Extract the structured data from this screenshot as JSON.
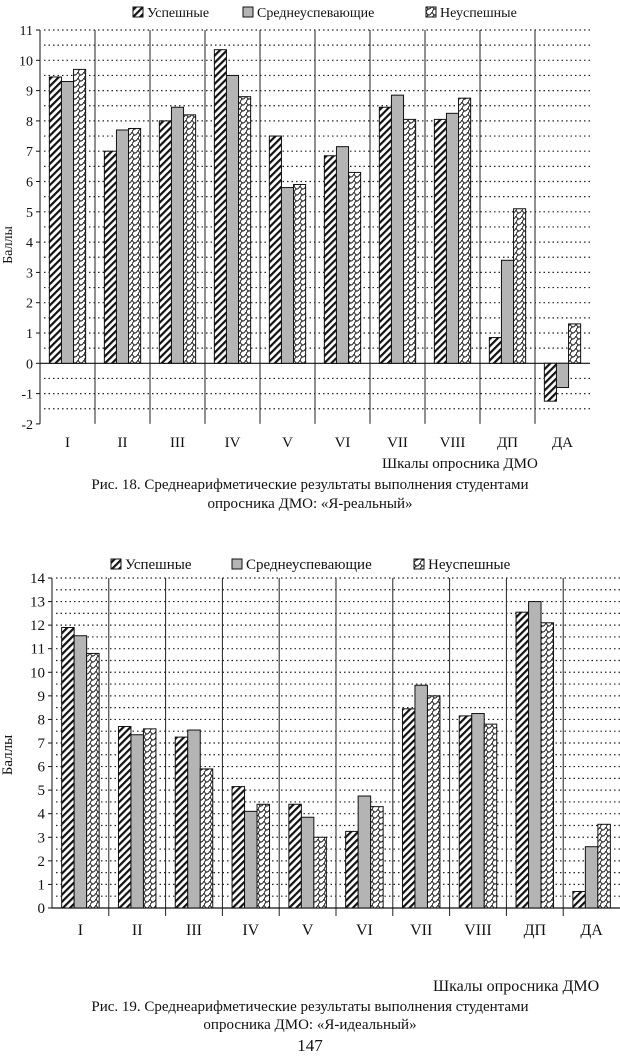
{
  "chart_data": [
    {
      "type": "bar",
      "title": "Рис. 18. Среднеарифметические результаты выполнения студентами опросника ДМО: «Я-реальный»",
      "xlabel": "Шкалы опросника ДМО",
      "ylabel": "Баллы",
      "ylim": [
        -2,
        11
      ],
      "yticks": [
        "-2",
        "-1",
        "0",
        "1",
        "2",
        "3",
        "4",
        "5",
        "6",
        "7",
        "8",
        "9",
        "10",
        "11"
      ],
      "grid": true,
      "legend_position": "top",
      "categories": [
        "I",
        "II",
        "III",
        "IV",
        "V",
        "VI",
        "VII",
        "VIII",
        "ДП",
        "ДА"
      ],
      "series": [
        {
          "name": "Успешные",
          "values": [
            9.45,
            7.0,
            8.0,
            10.35,
            7.5,
            6.85,
            8.45,
            8.05,
            0.85,
            -1.25
          ]
        },
        {
          "name": "Среднеуспевающие",
          "values": [
            9.3,
            7.7,
            8.45,
            9.5,
            5.8,
            7.15,
            8.85,
            8.25,
            3.4,
            -0.8
          ]
        },
        {
          "name": "Неуспешные",
          "values": [
            9.7,
            7.75,
            8.2,
            8.8,
            5.9,
            6.3,
            8.05,
            8.75,
            5.1,
            1.3
          ]
        }
      ]
    },
    {
      "type": "bar",
      "title": "Рис. 19. Среднеарифметические результаты выполнения студентами опросника ДМО: «Я-идеальный»",
      "xlabel": "Шкалы опросника ДМО",
      "ylabel": "Баллы",
      "ylim": [
        0,
        14
      ],
      "yticks": [
        "0",
        "1",
        "2",
        "3",
        "4",
        "5",
        "6",
        "7",
        "8",
        "9",
        "10",
        "11",
        "12",
        "13",
        "14"
      ],
      "grid": true,
      "legend_position": "top",
      "categories": [
        "I",
        "II",
        "III",
        "IV",
        "V",
        "VI",
        "VII",
        "VIII",
        "ДП",
        "ДА"
      ],
      "series": [
        {
          "name": "Успешные",
          "values": [
            11.9,
            7.7,
            7.25,
            5.15,
            4.4,
            3.25,
            8.45,
            8.15,
            12.55,
            0.7
          ]
        },
        {
          "name": "Среднеуспевающие",
          "values": [
            11.55,
            7.35,
            7.55,
            4.1,
            3.85,
            4.75,
            9.45,
            8.25,
            13.0,
            2.6
          ]
        },
        {
          "name": "Неуспешные",
          "values": [
            10.8,
            7.6,
            5.9,
            4.4,
            3.0,
            4.3,
            9.0,
            7.8,
            12.1,
            3.55
          ]
        }
      ]
    }
  ],
  "fig1": {
    "caption_line1": "Рис. 18. Среднеарифметические результаты выполнения студентами",
    "caption_line2": "опросника ДМО: «Я-реальный»"
  },
  "fig2": {
    "caption_line1": "Рис. 19. Среднеарифметические результаты выполнения студентами",
    "caption_line2": "опросника ДМО: «Я-идеальный»"
  },
  "page_number": "147",
  "colors": {
    "middle_bar": "#b4b4b4",
    "ink": "#111111"
  }
}
